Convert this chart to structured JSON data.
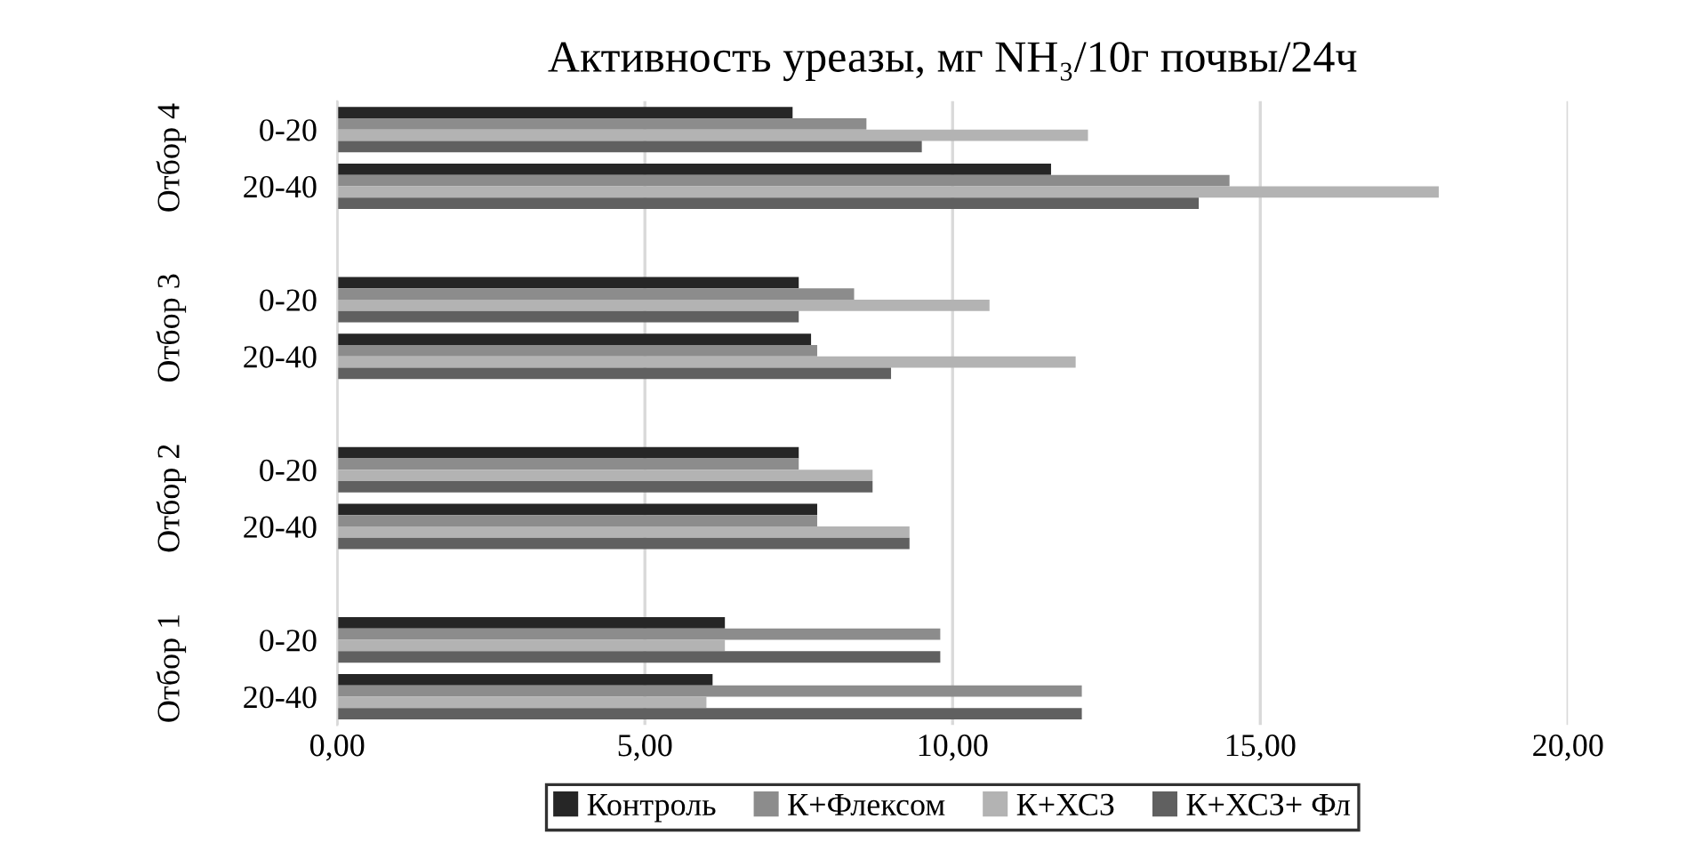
{
  "chart_data": {
    "type": "bar",
    "orientation": "horizontal",
    "title": "Активность уреазы, мг NH₃/10г почвы/24ч",
    "categories": [
      "0-20",
      "20-40",
      null,
      "0-20",
      "20-40",
      null,
      "0-20",
      "20-40",
      null,
      "0-20",
      "20-40"
    ],
    "series": [
      {
        "name": "Контроль",
        "color": "#262626",
        "values": [
          7.4,
          11.6,
          null,
          7.5,
          7.7,
          null,
          7.5,
          7.8,
          null,
          6.3,
          6.1
        ]
      },
      {
        "name": "К+Флексом",
        "color": "#8c8c8c",
        "values": [
          8.6,
          14.5,
          null,
          8.4,
          7.8,
          null,
          7.5,
          7.8,
          null,
          9.8,
          12.1
        ]
      },
      {
        "name": "К+ХСЗ",
        "color": "#b3b3b3",
        "values": [
          12.2,
          17.9,
          null,
          10.6,
          12.0,
          null,
          8.7,
          9.3,
          null,
          6.3,
          6.0
        ]
      },
      {
        "name": "К+ХСЗ+ Фл",
        "color": "#606060",
        "values": [
          9.5,
          14.0,
          null,
          7.5,
          9.0,
          null,
          8.7,
          9.3,
          null,
          9.8,
          12.1
        ]
      }
    ],
    "annotations": [
      "Отбор 4",
      "Отбор 3",
      "Отбор 2",
      "Отбор 1"
    ],
    "xlim": [
      0,
      20
    ],
    "xticks": [
      {
        "value": 0,
        "label": "0,00"
      },
      {
        "value": 5,
        "label": "5,00"
      },
      {
        "value": 10,
        "label": "10,00"
      },
      {
        "value": 15,
        "label": "15,00"
      },
      {
        "value": 20,
        "label": "20,00"
      }
    ],
    "grid": "x",
    "legend": "bottom"
  }
}
